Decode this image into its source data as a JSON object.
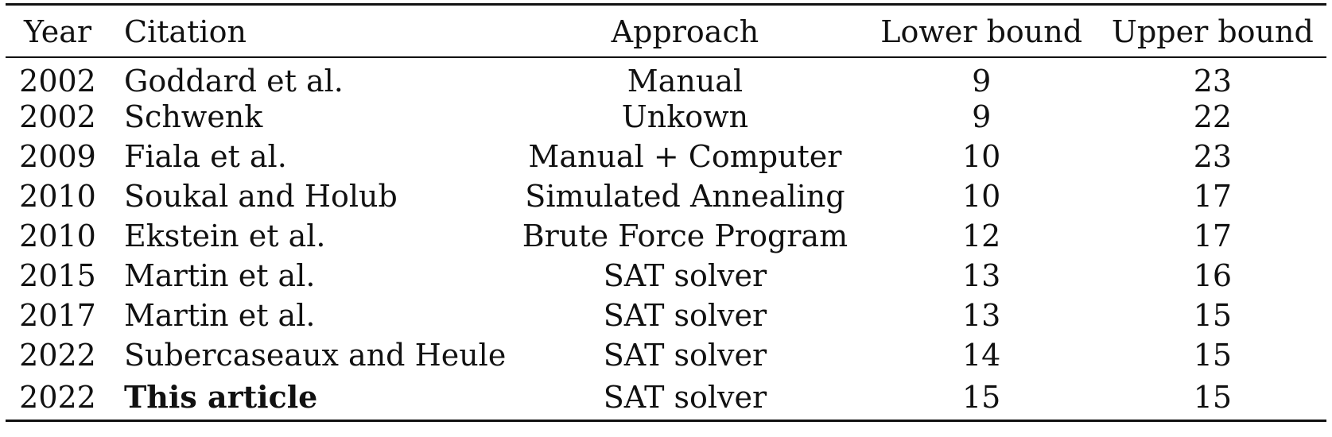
{
  "table": {
    "headers": {
      "year": "Year",
      "citation": "Citation",
      "approach": "Approach",
      "lower_bound": "Lower bound",
      "upper_bound": "Upper bound"
    },
    "rows": [
      {
        "year": "2002",
        "citation": "Goddard et al.",
        "approach": "Manual",
        "lower": "9",
        "upper": "23"
      },
      {
        "year": "2002",
        "citation": "Schwenk",
        "approach": "Unkown",
        "lower": "9",
        "upper": "22"
      },
      {
        "year": "2009",
        "citation": "Fiala et al.",
        "approach": "Manual + Computer",
        "lower": "10",
        "upper": "23"
      },
      {
        "year": "2010",
        "citation": "Soukal and Holub",
        "approach": "Simulated Annealing",
        "lower": "10",
        "upper": "17"
      },
      {
        "year": "2010",
        "citation": "Ekstein et al.",
        "approach": "Brute Force Program",
        "lower": "12",
        "upper": "17"
      },
      {
        "year": "2015",
        "citation": "Martin et al.",
        "approach": "SAT solver",
        "lower": "13",
        "upper": "16"
      },
      {
        "year": "2017",
        "citation": "Martin et al.",
        "approach": "SAT solver",
        "lower": "13",
        "upper": "15"
      },
      {
        "year": "2022",
        "citation": "Subercaseaux and Heule",
        "approach": "SAT solver",
        "lower": "14",
        "upper": "15"
      },
      {
        "year": "2022",
        "citation": "This article",
        "approach": "SAT solver",
        "lower": "15",
        "upper": "15"
      }
    ]
  }
}
